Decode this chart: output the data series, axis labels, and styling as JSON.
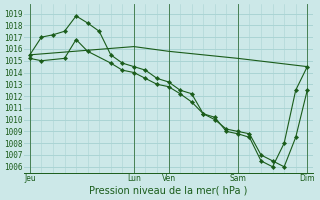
{
  "background_color": "#cce8e8",
  "grid_color": "#aad4d4",
  "line_color": "#1a5c1a",
  "marker_color": "#1a5c1a",
  "ylabel_ticks": [
    1006,
    1007,
    1008,
    1009,
    1010,
    1011,
    1012,
    1013,
    1014,
    1015,
    1016,
    1017,
    1018,
    1019
  ],
  "xlabel": "Pression niveau de la mer( hPa )",
  "xtick_labels": [
    "Jeu",
    "Lun",
    "Ven",
    "Sam",
    "Dim"
  ],
  "xtick_positions": [
    0,
    9,
    12,
    18,
    24
  ],
  "ylim": [
    1005.5,
    1019.8
  ],
  "xlim": [
    -0.5,
    24.5
  ],
  "line1_dense": [
    [
      0,
      1015.5
    ],
    [
      1,
      1017.0
    ],
    [
      2,
      1017.2
    ],
    [
      3,
      1017.5
    ],
    [
      4,
      1018.8
    ],
    [
      5,
      1018.2
    ],
    [
      6,
      1017.5
    ],
    [
      7,
      1015.5
    ],
    [
      8,
      1014.8
    ],
    [
      9,
      1014.5
    ],
    [
      10,
      1014.2
    ],
    [
      11,
      1013.5
    ],
    [
      12,
      1013.2
    ],
    [
      13,
      1012.5
    ],
    [
      14,
      1012.2
    ],
    [
      15,
      1010.5
    ],
    [
      16,
      1010.2
    ],
    [
      17,
      1009.0
    ],
    [
      18,
      1008.8
    ],
    [
      19,
      1008.5
    ],
    [
      20,
      1006.5
    ],
    [
      21,
      1006.0
    ],
    [
      22,
      1008.0
    ],
    [
      23,
      1012.5
    ],
    [
      24,
      1014.5
    ]
  ],
  "line2_dense": [
    [
      0,
      1015.2
    ],
    [
      1,
      1015.0
    ],
    [
      3,
      1015.2
    ],
    [
      4,
      1016.8
    ],
    [
      5,
      1015.8
    ],
    [
      7,
      1014.8
    ],
    [
      8,
      1014.2
    ],
    [
      9,
      1014.0
    ],
    [
      10,
      1013.5
    ],
    [
      11,
      1013.0
    ],
    [
      12,
      1012.8
    ],
    [
      13,
      1012.2
    ],
    [
      14,
      1011.5
    ],
    [
      15,
      1010.5
    ],
    [
      16,
      1010.0
    ],
    [
      17,
      1009.2
    ],
    [
      18,
      1009.0
    ],
    [
      19,
      1008.8
    ],
    [
      20,
      1007.0
    ],
    [
      21,
      1006.5
    ],
    [
      22,
      1006.0
    ],
    [
      23,
      1008.5
    ],
    [
      24,
      1012.5
    ]
  ],
  "line3_sparse": [
    [
      0,
      1015.5
    ],
    [
      9,
      1016.2
    ],
    [
      12,
      1015.8
    ],
    [
      18,
      1015.2
    ],
    [
      24,
      1014.5
    ]
  ],
  "vline_positions": [
    0,
    9,
    12,
    18,
    24
  ],
  "tick_fontsize": 5.5,
  "label_fontsize": 7
}
